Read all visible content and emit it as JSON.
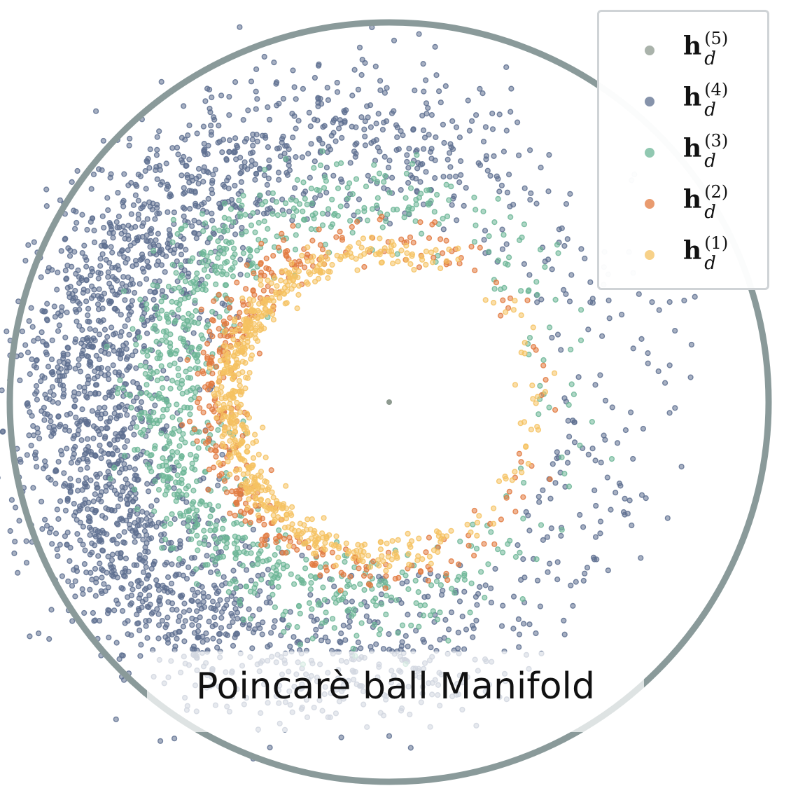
{
  "caption": "Poincarè ball Manifold",
  "colors": {
    "boundary": "#8a9a9a",
    "h5": "#8e9a90",
    "h4": "#5e7090",
    "h3": "#6db697",
    "h2": "#e27a40",
    "h1": "#f5c262"
  },
  "legend": {
    "placement": "top-right",
    "items": [
      {
        "base": "h",
        "sup": "(5)",
        "sub": "d",
        "color": "#8e9a90"
      },
      {
        "base": "h",
        "sup": "(4)",
        "sub": "d",
        "color": "#5e7090"
      },
      {
        "base": "h",
        "sup": "(3)",
        "sub": "d",
        "color": "#6db697"
      },
      {
        "base": "h",
        "sup": "(2)",
        "sub": "d",
        "color": "#e27a40"
      },
      {
        "base": "h",
        "sup": "(1)",
        "sub": "d",
        "color": "#f5c262"
      }
    ]
  },
  "chart_data": {
    "type": "scatter",
    "xlim": [
      -1,
      1
    ],
    "ylim": [
      -1,
      1
    ],
    "grid": false,
    "series": [
      {
        "name": "h_d^(5)",
        "color": "#8e9a90",
        "points": [
          [
            0.0,
            0.0
          ]
        ]
      },
      {
        "name": "h_d^(4)",
        "color": "#5e7090",
        "approx_count": 6000,
        "radius_range": [
          0.5,
          0.9
        ],
        "densest_side": "left"
      },
      {
        "name": "h_d^(3)",
        "color": "#6db697",
        "approx_count": 2200,
        "radius_range": [
          0.42,
          0.65
        ],
        "densest_side": "left"
      },
      {
        "name": "h_d^(2)",
        "color": "#e27a40",
        "approx_count": 900,
        "radius_range": [
          0.38,
          0.5
        ],
        "densest_side": "left"
      },
      {
        "name": "h_d^(1)",
        "color": "#f5c262",
        "approx_count": 1500,
        "radius_range": [
          0.36,
          0.44
        ],
        "densest_side": "left"
      }
    ]
  }
}
